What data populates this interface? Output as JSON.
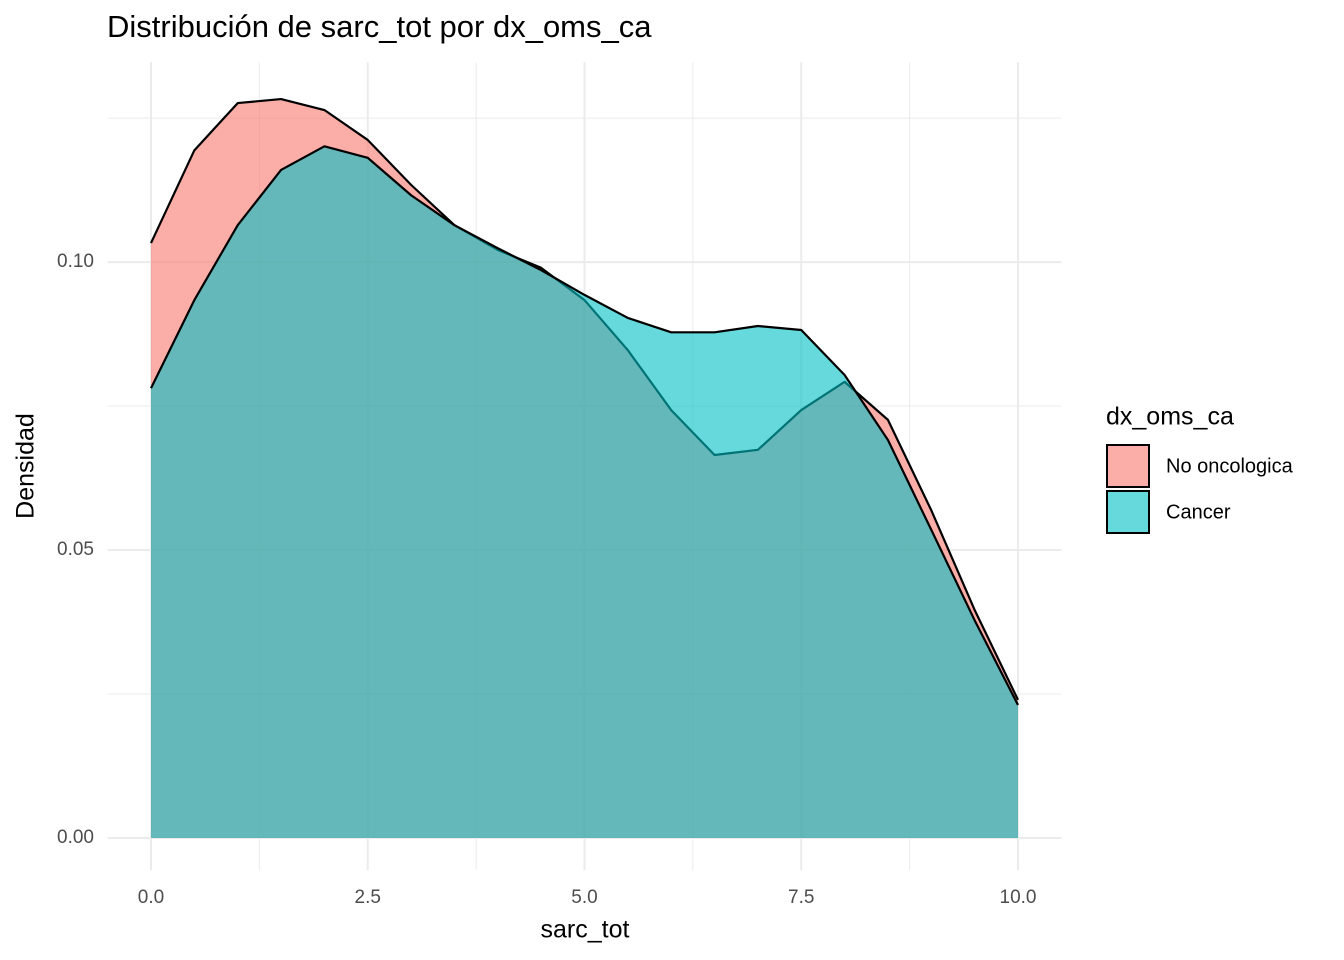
{
  "chart_data": {
    "type": "area",
    "title": "Distribución de sarc_tot por dx_oms_ca",
    "x_label": "sarc_tot",
    "y_label": "Densidad",
    "legend_title": "dx_oms_ca",
    "legend_position": "right",
    "x": [
      0,
      0.5,
      1,
      1.5,
      2,
      2.5,
      3,
      3.5,
      4,
      4.5,
      5,
      5.5,
      6,
      6.5,
      7,
      7.5,
      8,
      8.5,
      9,
      9.5,
      10
    ],
    "series": [
      {
        "name": "No oncologica",
        "color": "#F8766D",
        "values": [
          0.1033,
          0.1194,
          0.1276,
          0.1283,
          0.1264,
          0.1212,
          0.1134,
          0.1064,
          0.1021,
          0.099,
          0.0934,
          0.0847,
          0.0743,
          0.0665,
          0.0674,
          0.0743,
          0.0792,
          0.0726,
          0.0569,
          0.0396,
          0.024
        ]
      },
      {
        "name": "Cancer",
        "color": "#00BFC4",
        "values": [
          0.0781,
          0.0934,
          0.1064,
          0.116,
          0.1201,
          0.1181,
          0.1116,
          0.1064,
          0.1024,
          0.0986,
          0.0943,
          0.0903,
          0.0878,
          0.0878,
          0.0889,
          0.0882,
          0.0804,
          0.0691,
          0.0535,
          0.0378,
          0.0231
        ]
      }
    ],
    "fill_opacity": 0.6,
    "xlim": [
      -0.5,
      10.5
    ],
    "ylim": [
      -0.0056,
      0.1347
    ],
    "xticks": [
      {
        "value": 0,
        "label": "0.0"
      },
      {
        "value": 2.5,
        "label": "2.5"
      },
      {
        "value": 5,
        "label": "5.0"
      },
      {
        "value": 7.5,
        "label": "7.5"
      },
      {
        "value": 10,
        "label": "10.0"
      }
    ],
    "yticks": [
      {
        "value": 0,
        "label": "0.00"
      },
      {
        "value": 0.05,
        "label": "0.05"
      },
      {
        "value": 0.1,
        "label": "0.10"
      }
    ],
    "grid": true,
    "minor_grid": true
  }
}
